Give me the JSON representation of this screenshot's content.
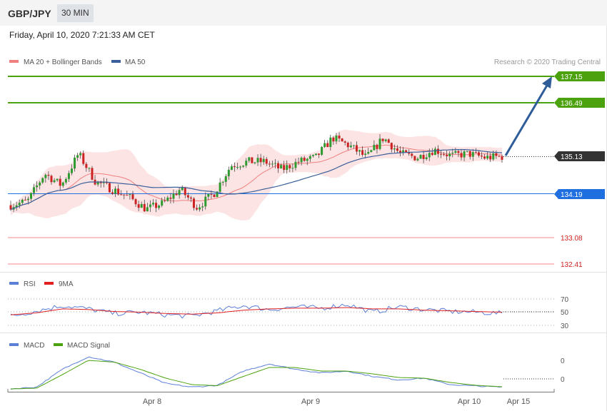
{
  "header": {
    "pair": "GBP/JPY",
    "timeframe": "30 MIN"
  },
  "timestamp": "Friday, April 10, 2020 7:21:33 AM CET",
  "legend": {
    "ma20": "MA 20 + Bollinger Bands",
    "ma50": "MA 50",
    "copyright": "Research © 2020 Trading Central",
    "rsi": "RSI",
    "rsi_ma": "9MA",
    "macd": "MACD",
    "macd_signal": "MACD Signal"
  },
  "colors": {
    "bull": "#2e9b2e",
    "bear": "#cc2222",
    "ma20": "#f08080",
    "ma50": "#3a5f9a",
    "band_fill": "#fde4e4",
    "target": "#4ca20e",
    "pivot": "#1f6fe0",
    "support": "#f08a8a",
    "current": "#333333",
    "arrow": "#2f5d99",
    "rsi": "#5b7fd6",
    "rsi_ma": "#e02020",
    "macd": "#5b7fd6",
    "macd_signal": "#4ca20e"
  },
  "chart_data": [
    {
      "type": "candlestick",
      "title": "GBP/JPY",
      "ylim": [
        132.2,
        137.5
      ],
      "x_labels": [
        "Apr 8",
        "Apr 9",
        "Apr 10",
        "Apr 15"
      ],
      "close_approx": [
        133.9,
        134.0,
        134.7,
        134.4,
        135.2,
        134.5,
        134.3,
        134.1,
        133.8,
        133.95,
        134.3,
        133.85,
        134.2,
        134.9,
        135.0,
        135.0,
        134.8,
        135.0,
        135.1,
        135.6,
        135.4,
        135.1,
        135.6,
        135.2,
        135.1,
        135.3,
        135.15,
        135.2,
        135.1,
        135.13
      ],
      "levels": [
        {
          "value": "137.15",
          "kind": "target"
        },
        {
          "value": "136.49",
          "kind": "target"
        },
        {
          "value": "135.13",
          "kind": "current"
        },
        {
          "value": "134.19",
          "kind": "pivot"
        },
        {
          "value": "133.08",
          "kind": "support"
        },
        {
          "value": "132.41",
          "kind": "support"
        }
      ],
      "projection": {
        "from": 135.13,
        "to": 137.15
      },
      "series": [
        {
          "name": "MA 20 + Bollinger Bands"
        },
        {
          "name": "MA 50"
        }
      ]
    },
    {
      "type": "line",
      "title": "RSI",
      "y_ticks": [
        "70",
        "50",
        "30"
      ],
      "series": [
        {
          "name": "RSI",
          "values": [
            44,
            52,
            60,
            55,
            48,
            50,
            46,
            44,
            52,
            60,
            54,
            58,
            56,
            62,
            50,
            58,
            54,
            51,
            50,
            48
          ]
        },
        {
          "name": "9MA",
          "values": [
            46,
            49,
            55,
            54,
            51,
            50,
            48,
            47,
            49,
            53,
            55,
            56,
            56,
            57,
            55,
            55,
            53,
            52,
            51,
            50
          ]
        }
      ]
    },
    {
      "type": "line",
      "title": "MACD",
      "y_ticks": [
        "0",
        "0"
      ],
      "series": [
        {
          "name": "MACD",
          "values": [
            0,
            0.05,
            0.55,
            0.9,
            0.75,
            0.45,
            0.15,
            0.05,
            0.1,
            0.5,
            0.7,
            0.55,
            0.45,
            0.5,
            0.35,
            0.25,
            0.3,
            0.12,
            0.08,
            0.05
          ]
        },
        {
          "name": "MACD Signal",
          "values": [
            0,
            0.02,
            0.4,
            0.8,
            0.75,
            0.55,
            0.3,
            0.12,
            0.09,
            0.35,
            0.6,
            0.6,
            0.5,
            0.5,
            0.42,
            0.32,
            0.3,
            0.18,
            0.1,
            0.06
          ]
        }
      ]
    }
  ]
}
